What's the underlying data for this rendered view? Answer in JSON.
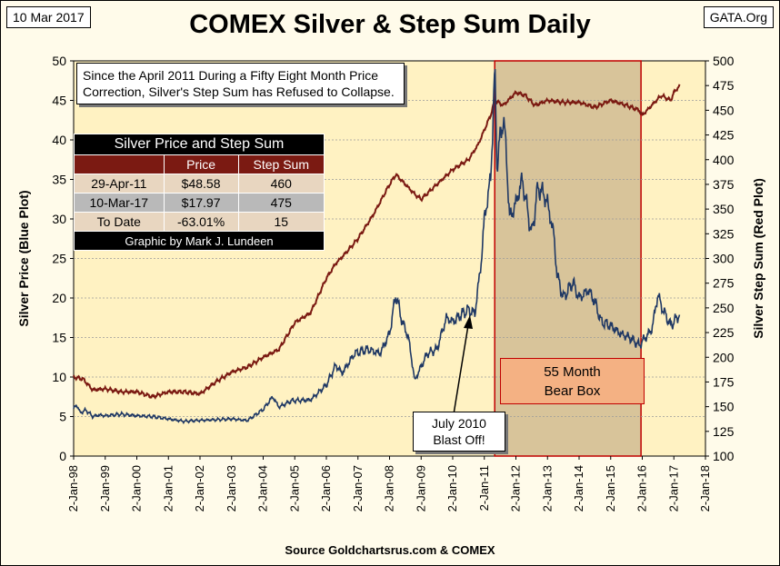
{
  "header": {
    "date": "10 Mar 2017",
    "title": "COMEX Silver & Step Sum Daily",
    "source_tag": "GATA.Org",
    "footer": "Source Goldchartsrus.com & COMEX"
  },
  "annotations": {
    "note_main": "Since the April 2011 During a  Fifty Eight Month Price Correction, Silver's Step Sum has Refused to Collapse.",
    "july_line1": "July 2010",
    "july_line2": "Blast Off!",
    "bear_line1": "55 Month",
    "bear_line2": "Bear Box"
  },
  "table": {
    "title": "Silver Price and Step Sum",
    "headers": [
      "",
      "Price",
      "Step Sum"
    ],
    "rows": [
      [
        "29-Apr-11",
        "$48.58",
        "460"
      ],
      [
        "10-Mar-17",
        "$17.97",
        "475"
      ],
      [
        "To Date",
        "-63.01%",
        "15"
      ]
    ],
    "credit": "Graphic by Mark J. Lundeen"
  },
  "colors": {
    "price_line": "#1f3864",
    "step_line": "#7b1a12",
    "plot_bg": "#fff2c2",
    "bear_box_fill": "#d8c49a",
    "bear_box_border": "#c00000"
  },
  "chart_data": {
    "type": "line",
    "title": "COMEX Silver & Step Sum Daily",
    "xlabel": "",
    "ylabel_left": "Silver Price   (Blue Plot)",
    "ylabel_right": "Silver Step Sum   (Red Plot)",
    "xlim": [
      1998.0,
      2018.0
    ],
    "ylim_left": [
      0,
      50
    ],
    "ylim_right": [
      100,
      500
    ],
    "x_ticks": [
      1998,
      1999,
      2000,
      2001,
      2002,
      2003,
      2004,
      2005,
      2006,
      2007,
      2008,
      2009,
      2010,
      2011,
      2012,
      2013,
      2014,
      2015,
      2016,
      2017,
      2018
    ],
    "x_tick_labels": [
      "2-Jan-98",
      "2-Jan-99",
      "2-Jan-00",
      "2-Jan-01",
      "2-Jan-02",
      "2-Jan-03",
      "2-Jan-04",
      "2-Jan-05",
      "2-Jan-06",
      "2-Jan-07",
      "2-Jan-08",
      "2-Jan-09",
      "2-Jan-10",
      "2-Jan-11",
      "2-Jan-12",
      "2-Jan-13",
      "2-Jan-14",
      "2-Jan-15",
      "2-Jan-16",
      "2-Jan-17",
      "2-Jan-18"
    ],
    "y_left_ticks": [
      0,
      5,
      10,
      15,
      20,
      25,
      30,
      35,
      40,
      45,
      50
    ],
    "y_right_ticks": [
      100,
      125,
      150,
      175,
      200,
      225,
      250,
      275,
      300,
      325,
      350,
      375,
      400,
      425,
      450,
      475,
      500
    ],
    "series": [
      {
        "name": "Silver Price",
        "axis": "left",
        "x": [
          1998.0,
          1998.1,
          1998.2,
          1998.4,
          1998.6,
          1998.8,
          1999.0,
          1999.5,
          2000.0,
          2000.5,
          2001.0,
          2001.5,
          2001.9,
          2002.5,
          2003.0,
          2003.5,
          2004.0,
          2004.3,
          2004.5,
          2004.9,
          2005.5,
          2006.0,
          2006.3,
          2006.5,
          2006.9,
          2007.3,
          2007.7,
          2008.0,
          2008.2,
          2008.4,
          2008.6,
          2008.8,
          2008.9,
          2009.2,
          2009.5,
          2009.8,
          2010.0,
          2010.3,
          2010.5,
          2010.7,
          2010.9,
          2011.0,
          2011.2,
          2011.33,
          2011.4,
          2011.5,
          2011.6,
          2011.7,
          2011.8,
          2012.0,
          2012.2,
          2012.5,
          2012.7,
          2012.9,
          2013.0,
          2013.2,
          2013.3,
          2013.5,
          2013.8,
          2014.0,
          2014.3,
          2014.5,
          2014.7,
          2015.0,
          2015.3,
          2015.6,
          2015.9,
          2016.0,
          2016.3,
          2016.5,
          2016.6,
          2016.9,
          2017.0,
          2017.19
        ],
        "values": [
          6.0,
          6.5,
          5.5,
          5.8,
          5.0,
          5.2,
          5.1,
          5.3,
          5.1,
          5.0,
          4.7,
          4.4,
          4.5,
          4.6,
          4.7,
          4.5,
          5.9,
          7.5,
          6.2,
          7.0,
          7.1,
          9.0,
          11.5,
          10.5,
          13.0,
          13.5,
          13.0,
          15.5,
          20.5,
          17.0,
          15.0,
          9.5,
          10.5,
          13.0,
          13.5,
          17.5,
          17.0,
          18.0,
          18.5,
          18.0,
          24.5,
          30.0,
          35.0,
          48.58,
          37.0,
          40.0,
          43.0,
          38.0,
          30.0,
          32.0,
          35.0,
          28.0,
          34.0,
          33.0,
          32.0,
          28.0,
          23.0,
          20.0,
          22.0,
          20.0,
          21.0,
          19.5,
          17.0,
          16.5,
          15.5,
          15.0,
          14.0,
          14.5,
          16.0,
          20.5,
          19.0,
          16.5,
          17.0,
          17.97
        ]
      },
      {
        "name": "Step Sum",
        "axis": "right",
        "x": [
          1998.0,
          1998.3,
          1998.6,
          1999.0,
          1999.5,
          2000.0,
          2000.5,
          2001.0,
          2001.5,
          2002.0,
          2002.5,
          2003.0,
          2003.5,
          2004.0,
          2004.5,
          2005.0,
          2005.5,
          2006.0,
          2006.3,
          2006.6,
          2007.0,
          2007.5,
          2008.0,
          2008.2,
          2008.5,
          2008.8,
          2009.0,
          2009.5,
          2010.0,
          2010.5,
          2010.8,
          2011.0,
          2011.2,
          2011.33,
          2011.6,
          2012.0,
          2012.3,
          2012.6,
          2013.0,
          2013.5,
          2014.0,
          2014.5,
          2015.0,
          2015.5,
          2015.9,
          2016.0,
          2016.3,
          2016.6,
          2016.9,
          2017.0,
          2017.19
        ],
        "values": [
          180,
          178,
          167,
          168,
          165,
          165,
          160,
          165,
          165,
          163,
          175,
          185,
          190,
          200,
          208,
          235,
          245,
          280,
          295,
          305,
          320,
          345,
          375,
          385,
          375,
          365,
          360,
          375,
          390,
          400,
          415,
          430,
          445,
          460,
          455,
          468,
          465,
          455,
          460,
          458,
          458,
          453,
          460,
          455,
          450,
          445,
          455,
          465,
          460,
          468,
          475
        ]
      }
    ],
    "highlights": [
      {
        "label": "55 Month Bear Box",
        "x_range": [
          2011.33,
          2015.96
        ]
      }
    ]
  }
}
